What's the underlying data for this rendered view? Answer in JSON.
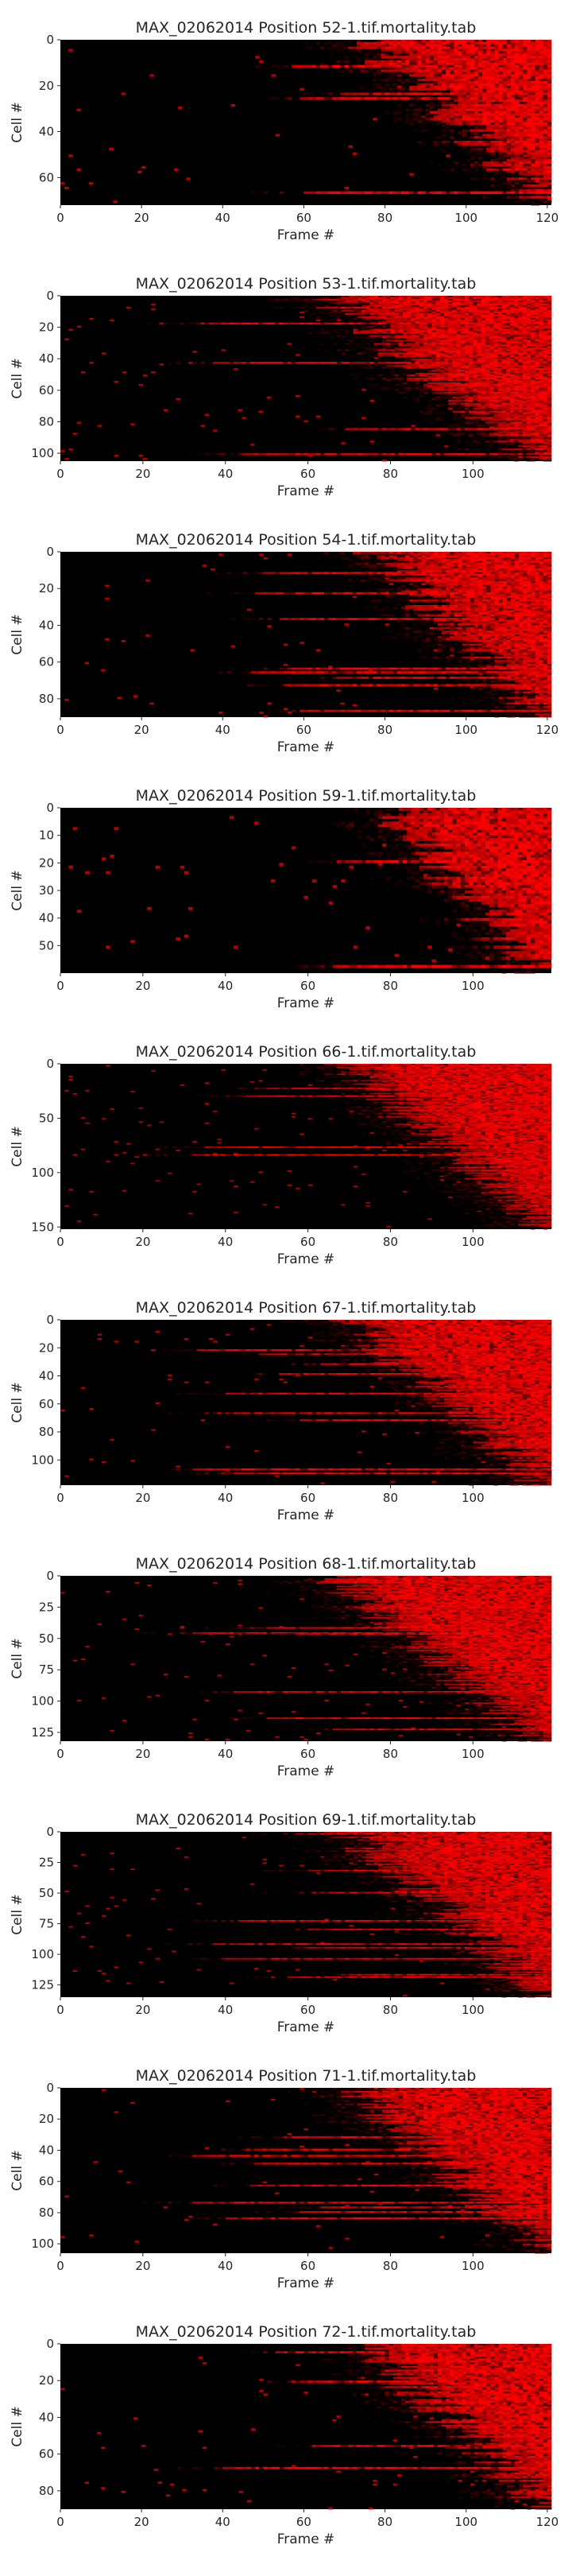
{
  "chart_data": [
    {
      "type": "heatmap",
      "title": "MAX_02062014 Position 52-1.tif.mortality.tab",
      "xlabel": "Frame #",
      "ylabel": "Cell #",
      "rows": 72,
      "cols": 121,
      "xlim": [
        0,
        121
      ],
      "ylim": [
        72,
        0
      ],
      "xticks": [
        0,
        20,
        40,
        60,
        80,
        100,
        120
      ],
      "yticks": [
        0,
        20,
        40,
        60
      ],
      "colormap": [
        "#000000",
        "#ff0000"
      ],
      "onset_frame_range": [
        75,
        120
      ]
    },
    {
      "type": "heatmap",
      "title": "MAX_02062014 Position 53-1.tif.mortality.tab",
      "xlabel": "Frame #",
      "ylabel": "Cell #",
      "rows": 105,
      "cols": 119,
      "xlim": [
        0,
        119
      ],
      "ylim": [
        105,
        0
      ],
      "xticks": [
        0,
        20,
        40,
        60,
        80,
        100
      ],
      "yticks": [
        0,
        20,
        40,
        60,
        80,
        100
      ],
      "colormap": [
        "#000000",
        "#ff0000"
      ],
      "onset_frame_range": [
        65,
        115
      ]
    },
    {
      "type": "heatmap",
      "title": "MAX_02062014 Position 54-1.tif.mortality.tab",
      "xlabel": "Frame #",
      "ylabel": "Cell #",
      "rows": 90,
      "cols": 121,
      "xlim": [
        0,
        121
      ],
      "ylim": [
        90,
        0
      ],
      "xticks": [
        0,
        20,
        40,
        60,
        80,
        100,
        120
      ],
      "yticks": [
        0,
        20,
        40,
        60,
        80
      ],
      "colormap": [
        "#000000",
        "#ff0000"
      ],
      "onset_frame_range": [
        78,
        118
      ]
    },
    {
      "type": "heatmap",
      "title": "MAX_02062014 Position 59-1.tif.mortality.tab",
      "xlabel": "Frame #",
      "ylabel": "Cell #",
      "rows": 60,
      "cols": 119,
      "xlim": [
        0,
        119
      ],
      "ylim": [
        60,
        0
      ],
      "xticks": [
        0,
        20,
        40,
        60,
        80,
        100
      ],
      "yticks": [
        0,
        10,
        20,
        30,
        40,
        50
      ],
      "colormap": [
        "#000000",
        "#ff0000"
      ],
      "onset_frame_range": [
        78,
        116
      ]
    },
    {
      "type": "heatmap",
      "title": "MAX_02062014 Position 66-1.tif.mortality.tab",
      "xlabel": "Frame #",
      "ylabel": "Cell #",
      "rows": 152,
      "cols": 119,
      "xlim": [
        0,
        119
      ],
      "ylim": [
        152,
        0
      ],
      "xticks": [
        0,
        20,
        40,
        60,
        80,
        100
      ],
      "yticks": [
        0,
        50,
        100,
        150
      ],
      "colormap": [
        "#000000",
        "#ff0000"
      ],
      "onset_frame_range": [
        70,
        118
      ]
    },
    {
      "type": "heatmap",
      "title": "MAX_02062014 Position 67-1.tif.mortality.tab",
      "xlabel": "Frame #",
      "ylabel": "Cell #",
      "rows": 118,
      "cols": 119,
      "xlim": [
        0,
        119
      ],
      "ylim": [
        118,
        0
      ],
      "xticks": [
        0,
        20,
        40,
        60,
        80,
        100
      ],
      "yticks": [
        0,
        20,
        40,
        60,
        80,
        100
      ],
      "colormap": [
        "#000000",
        "#ff0000"
      ],
      "onset_frame_range": [
        70,
        118
      ]
    },
    {
      "type": "heatmap",
      "title": "MAX_02062014 Position 68-1.tif.mortality.tab",
      "xlabel": "Frame #",
      "ylabel": "Cell #",
      "rows": 132,
      "cols": 119,
      "xlim": [
        0,
        119
      ],
      "ylim": [
        132,
        0
      ],
      "xticks": [
        0,
        20,
        40,
        60,
        80,
        100
      ],
      "yticks": [
        0,
        25,
        50,
        75,
        100,
        125
      ],
      "colormap": [
        "#000000",
        "#ff0000"
      ],
      "onset_frame_range": [
        65,
        116
      ]
    },
    {
      "type": "heatmap",
      "title": "MAX_02062014 Position 69-1.tif.mortality.tab",
      "xlabel": "Frame #",
      "ylabel": "Cell #",
      "rows": 135,
      "cols": 119,
      "xlim": [
        0,
        119
      ],
      "ylim": [
        135,
        0
      ],
      "xticks": [
        0,
        20,
        40,
        60,
        80,
        100
      ],
      "yticks": [
        0,
        25,
        50,
        75,
        100,
        125
      ],
      "colormap": [
        "#000000",
        "#ff0000"
      ],
      "onset_frame_range": [
        70,
        118
      ]
    },
    {
      "type": "heatmap",
      "title": "MAX_02062014 Position 71-1.tif.mortality.tab",
      "xlabel": "Frame #",
      "ylabel": "Cell #",
      "rows": 106,
      "cols": 119,
      "xlim": [
        0,
        119
      ],
      "ylim": [
        106,
        0
      ],
      "xticks": [
        0,
        20,
        40,
        60,
        80,
        100
      ],
      "yticks": [
        0,
        20,
        40,
        60,
        80,
        100
      ],
      "colormap": [
        "#000000",
        "#ff0000"
      ],
      "onset_frame_range": [
        70,
        118
      ]
    },
    {
      "type": "heatmap",
      "title": "MAX_02062014 Position 72-1.tif.mortality.tab",
      "xlabel": "Frame #",
      "ylabel": "Cell #",
      "rows": 90,
      "cols": 121,
      "xlim": [
        0,
        121
      ],
      "ylim": [
        90,
        0
      ],
      "xticks": [
        0,
        20,
        40,
        60,
        80,
        100,
        120
      ],
      "yticks": [
        0,
        20,
        40,
        60,
        80
      ],
      "colormap": [
        "#000000",
        "#ff0000"
      ],
      "onset_frame_range": [
        75,
        120
      ]
    }
  ]
}
